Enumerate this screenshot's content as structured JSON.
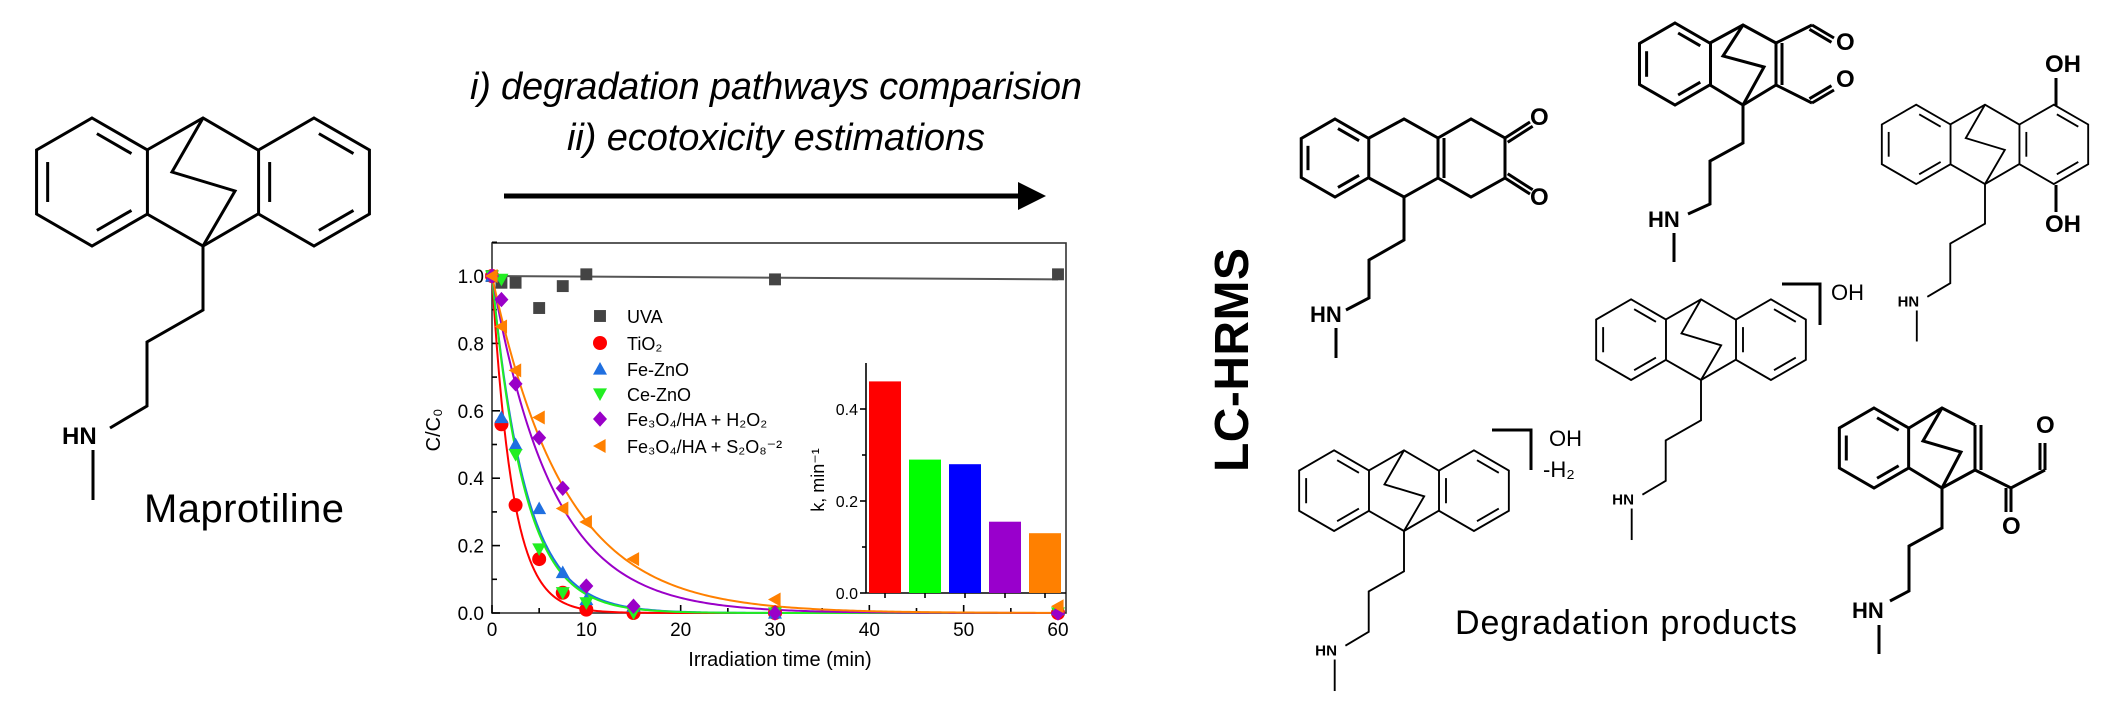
{
  "header": {
    "line1": "i) degradation pathways comparision",
    "line2": "ii) ecotoxicity estimations"
  },
  "parent_compound": {
    "name": "Maprotiline"
  },
  "method_label": "LC-HRMS",
  "products_label": "Degradation products",
  "atoms": {
    "hn": "HN",
    "o": "O",
    "oh": "OH",
    "minus_h2": "-H₂"
  },
  "colors": {
    "UVA": "#444444",
    "TiO2": "#ff0000",
    "Fe-ZnO": "#1f6fe0",
    "Ce-ZnO": "#22ee22",
    "Fe3O4/HA + H2O2": "#9a00c8",
    "Fe3O4/HA + S2O8-2": "#ff8000"
  },
  "chart_data": [
    {
      "type": "scatter",
      "title": "",
      "xlabel": "Irradiation time (min)",
      "ylabel": "C/C₀",
      "xlim": [
        0,
        60
      ],
      "ylim": [
        0,
        1.1
      ],
      "xticks": [
        "0",
        "10",
        "20",
        "30",
        "40",
        "50",
        "60"
      ],
      "yticks": [
        "0.0",
        "0.2",
        "0.4",
        "0.6",
        "0.8",
        "1.0"
      ],
      "legend_position": "upper-middle",
      "x": [
        0,
        1,
        2.5,
        5,
        7.5,
        10,
        15,
        30,
        60
      ],
      "series": [
        {
          "name": "UVA",
          "marker": "square",
          "values": [
            1.0,
            0.98,
            0.98,
            0.905,
            0.97,
            1.005,
            null,
            0.99,
            1.005
          ],
          "fit": "flat"
        },
        {
          "name": "TiO₂",
          "marker": "circle",
          "values": [
            1.0,
            0.56,
            0.32,
            0.16,
            0.06,
            0.01,
            0.0,
            0.0,
            0.0
          ],
          "fit_k": 0.46
        },
        {
          "name": "Fe-ZnO",
          "marker": "triangle-up",
          "values": [
            1.0,
            0.58,
            0.5,
            0.31,
            0.12,
            0.04,
            0.02,
            0.0,
            0.01
          ],
          "fit_k": 0.28
        },
        {
          "name": "Ce-ZnO",
          "marker": "triangle-down",
          "values": [
            1.0,
            0.99,
            0.47,
            0.19,
            0.06,
            0.03,
            0.0,
            0.0,
            0.0
          ],
          "fit_k": 0.29
        },
        {
          "name": "Fe₃O₄/HA + H₂O₂",
          "marker": "diamond",
          "values": [
            1.0,
            0.93,
            0.68,
            0.52,
            0.37,
            0.08,
            0.02,
            0.0,
            0.0
          ],
          "fit_k": 0.155
        },
        {
          "name": "Fe₃O₄/HA + S₂O₈⁻²",
          "marker": "triangle-left",
          "values": [
            1.0,
            0.85,
            0.72,
            0.58,
            0.31,
            0.27,
            0.16,
            0.04,
            0.02
          ],
          "fit_k": 0.13
        }
      ]
    },
    {
      "type": "bar",
      "title": "",
      "xlabel": "",
      "ylabel": "k, min⁻¹",
      "ylim": [
        0,
        0.5
      ],
      "yticks": [
        "0.0",
        "0.2",
        "0.4"
      ],
      "categories": [
        "TiO₂",
        "Ce-ZnO",
        "Fe-ZnO",
        "Fe₃O₄/HA + H₂O₂",
        "Fe₃O₄/HA + S₂O₈⁻²"
      ],
      "values": [
        0.46,
        0.29,
        0.28,
        0.155,
        0.13
      ],
      "bar_colors": [
        "#ff0000",
        "#00ff00",
        "#0000ff",
        "#9900cc",
        "#ff8000"
      ]
    }
  ]
}
